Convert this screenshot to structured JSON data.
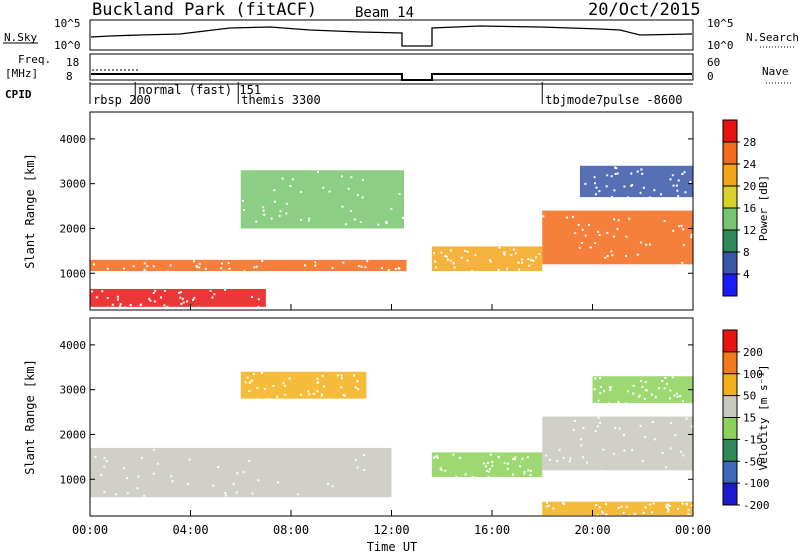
{
  "header": {
    "site": "Buckland Park (fitACF)",
    "beam": "Beam 14",
    "date": "20/Oct/2015"
  },
  "summary": {
    "nsky_label": "N.Sky",
    "nsky_ticks": [
      "10^5",
      "10^0"
    ],
    "nsearch_label": "N.Search",
    "nsearch_ticks": [
      "10^5",
      "10^0"
    ],
    "freq_label_1": "Freq.",
    "freq_label_2": "[MHz]",
    "freq_ticks": [
      "18",
      "8"
    ],
    "nave_label": "Nave",
    "nave_ticks": [
      "60",
      "0"
    ],
    "cpid_label": "CPID"
  },
  "cpid_modes": [
    {
      "label": "rbsp 200",
      "start_hour": 0.0
    },
    {
      "label": "normal (fast) 151",
      "start_hour": 1.8
    },
    {
      "label": "themis 3300",
      "start_hour": 5.9
    },
    {
      "label": "tbjmode7pulse -8600",
      "start_hour": 18.0
    }
  ],
  "chart_data": [
    {
      "type": "heatmap",
      "name": "power",
      "ylabel": "Slant Range [km]",
      "xlabel": "",
      "x_ticks": [
        "00:00",
        "04:00",
        "08:00",
        "12:00",
        "16:00",
        "20:00",
        "00:00"
      ],
      "y_ticks": [
        1000,
        2000,
        3000,
        4000
      ],
      "ylim": [
        180,
        4600
      ],
      "xlim_hours": [
        0,
        24
      ],
      "colorbar": {
        "label": "Power [dB]",
        "ticks": [
          "4",
          "8",
          "12",
          "16",
          "20",
          "24",
          "28"
        ],
        "colors": [
          "#1a1aff",
          "#3a56a8",
          "#2e8b57",
          "#77c66f",
          "#d9d12a",
          "#f3a51a",
          "#f26a1a",
          "#e81414"
        ]
      },
      "data_gap_hours": [
        12.6,
        13.6
      ],
      "echo_bands": [
        {
          "h0": 0.0,
          "h1": 12.6,
          "r_start": 1050,
          "r_end": 1300,
          "color": "#f26a1a"
        },
        {
          "h0": 0.0,
          "h1": 7.0,
          "r_start": 250,
          "r_end": 650,
          "color": "#e81414"
        },
        {
          "h0": 6.0,
          "h1": 12.5,
          "r_start": 2000,
          "r_end": 3300,
          "color": "#77c66f"
        },
        {
          "h0": 13.6,
          "h1": 18.0,
          "r_start": 1050,
          "r_end": 1600,
          "color": "#f3a51a"
        },
        {
          "h0": 18.0,
          "h1": 24.0,
          "r_start": 1200,
          "r_end": 2400,
          "color": "#f26a1a"
        },
        {
          "h0": 19.5,
          "h1": 24.0,
          "r_start": 2700,
          "r_end": 3400,
          "color": "#3a56a8"
        }
      ]
    },
    {
      "type": "heatmap",
      "name": "velocity",
      "ylabel": "Slant Range [km]",
      "xlabel": "Time UT",
      "x_ticks": [
        "00:00",
        "04:00",
        "08:00",
        "12:00",
        "16:00",
        "20:00",
        "00:00"
      ],
      "y_ticks": [
        1000,
        2000,
        3000,
        4000
      ],
      "ylim": [
        180,
        4600
      ],
      "xlim_hours": [
        0,
        24
      ],
      "colorbar": {
        "label": "Velocity [m s⁻¹]",
        "ticks": [
          "200",
          "100",
          "50",
          "15",
          "-15",
          "-50",
          "-100",
          "-200"
        ],
        "colors": [
          "#1a1ad0",
          "#3a6ab8",
          "#2e8b57",
          "#8cd15a",
          "#c8c8c0",
          "#f3b01a",
          "#f27a1a",
          "#e81414"
        ]
      },
      "data_gap_hours": [
        12.6,
        13.6
      ],
      "echo_bands": [
        {
          "h0": 0.0,
          "h1": 12.0,
          "r_start": 600,
          "r_end": 1700,
          "color": "#c8c8c0"
        },
        {
          "h0": 6.0,
          "h1": 11.0,
          "r_start": 2800,
          "r_end": 3400,
          "color": "#f3b01a"
        },
        {
          "h0": 13.6,
          "h1": 18.0,
          "r_start": 1050,
          "r_end": 1600,
          "color": "#8cd15a"
        },
        {
          "h0": 18.0,
          "h1": 24.0,
          "r_start": 1200,
          "r_end": 2400,
          "color": "#c8c8c0"
        },
        {
          "h0": 18.0,
          "h1": 24.0,
          "r_start": 200,
          "r_end": 500,
          "color": "#f3b01a"
        },
        {
          "h0": 20.0,
          "h1": 24.0,
          "r_start": 2700,
          "r_end": 3300,
          "color": "#8cd15a"
        }
      ]
    }
  ]
}
